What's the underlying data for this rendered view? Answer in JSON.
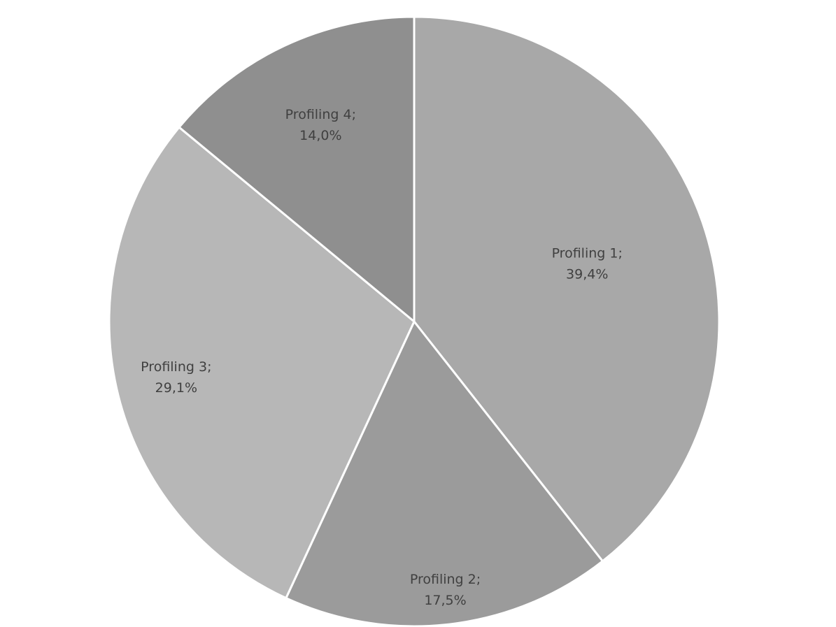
{
  "chart_data": {
    "type": "pie",
    "categories": [
      "Profiling 1;",
      "Profiling 2;",
      "Profiling 3;",
      "Profiling 4;"
    ],
    "values": [
      39.4,
      17.5,
      29.1,
      14.0
    ],
    "value_labels": [
      "39,4%",
      "17,5%",
      "29,1%",
      "14,0%"
    ],
    "colors": [
      "#a8a8a8",
      "#9b9b9b",
      "#b7b7b7",
      "#8f8f8f"
    ]
  }
}
